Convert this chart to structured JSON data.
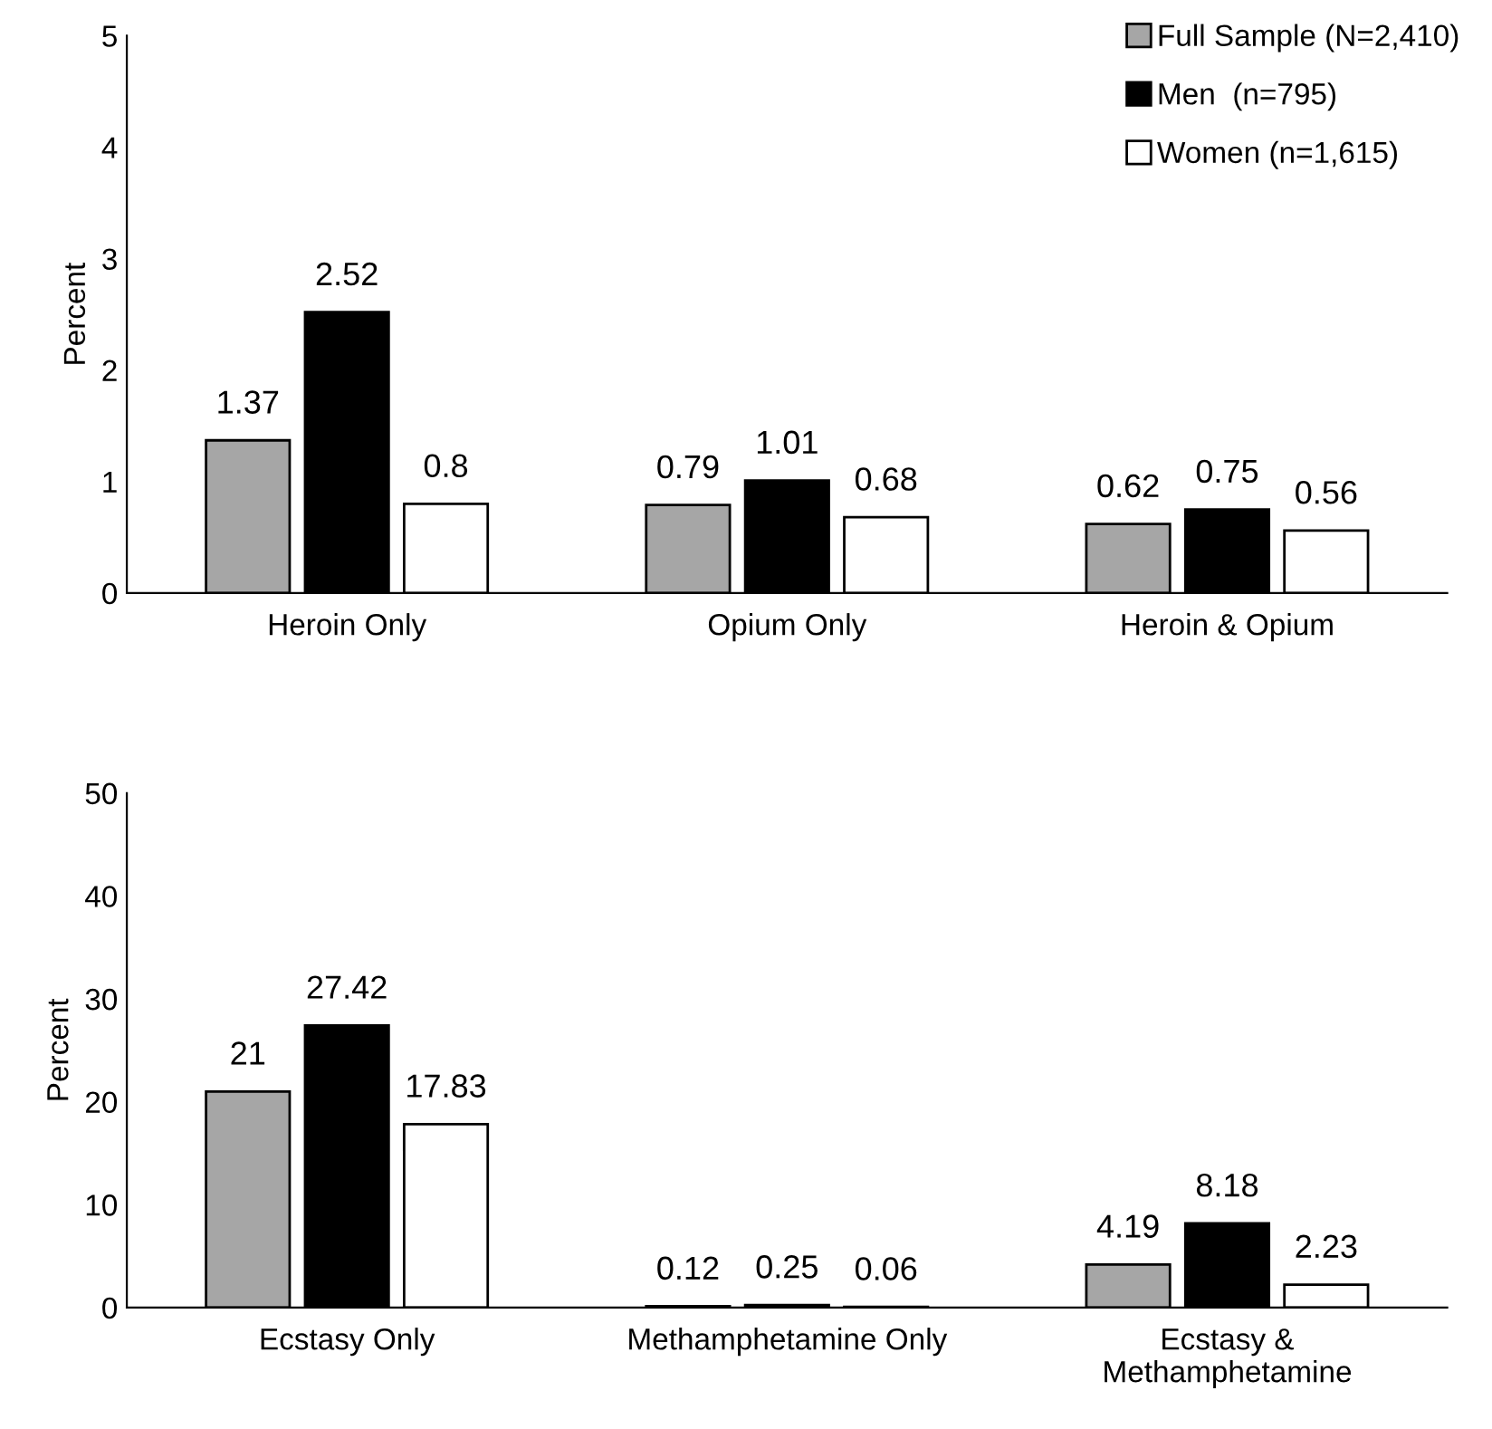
{
  "chart_data": [
    {
      "type": "bar",
      "ylabel": "Percent",
      "categories": [
        "Heroin Only",
        "Opium Only",
        "Heroin & Opium"
      ],
      "ylim": [
        0,
        5
      ],
      "yticks": [
        0,
        1,
        2,
        3,
        4,
        5
      ],
      "grid": false,
      "legend": "top right",
      "data_labels": true,
      "series": [
        {
          "name": "Full Sample (N=2,410)",
          "color": "#a6a6a6",
          "values": [
            1.37,
            0.79,
            0.62
          ]
        },
        {
          "name": "Men  (n=795)",
          "color": "#000000",
          "values": [
            2.52,
            1.01,
            0.75
          ]
        },
        {
          "name": "Women (n=1,615)",
          "color": "#ffffff",
          "values": [
            0.8,
            0.68,
            0.56
          ]
        }
      ]
    },
    {
      "type": "bar",
      "ylabel": "Percent",
      "categories": [
        "Ecstasy Only",
        "Methamphetamine Only",
        "Ecstasy &\nMethamphetamine"
      ],
      "ylim": [
        0,
        50
      ],
      "yticks": [
        0,
        10,
        20,
        30,
        40,
        50
      ],
      "grid": false,
      "data_labels": true,
      "series": [
        {
          "color": "#a6a6a6",
          "values": [
            21,
            0.12,
            4.19
          ]
        },
        {
          "color": "#000000",
          "values": [
            27.42,
            0.25,
            8.18
          ]
        },
        {
          "color": "#ffffff",
          "values": [
            17.83,
            0.06,
            2.23
          ]
        }
      ]
    }
  ]
}
